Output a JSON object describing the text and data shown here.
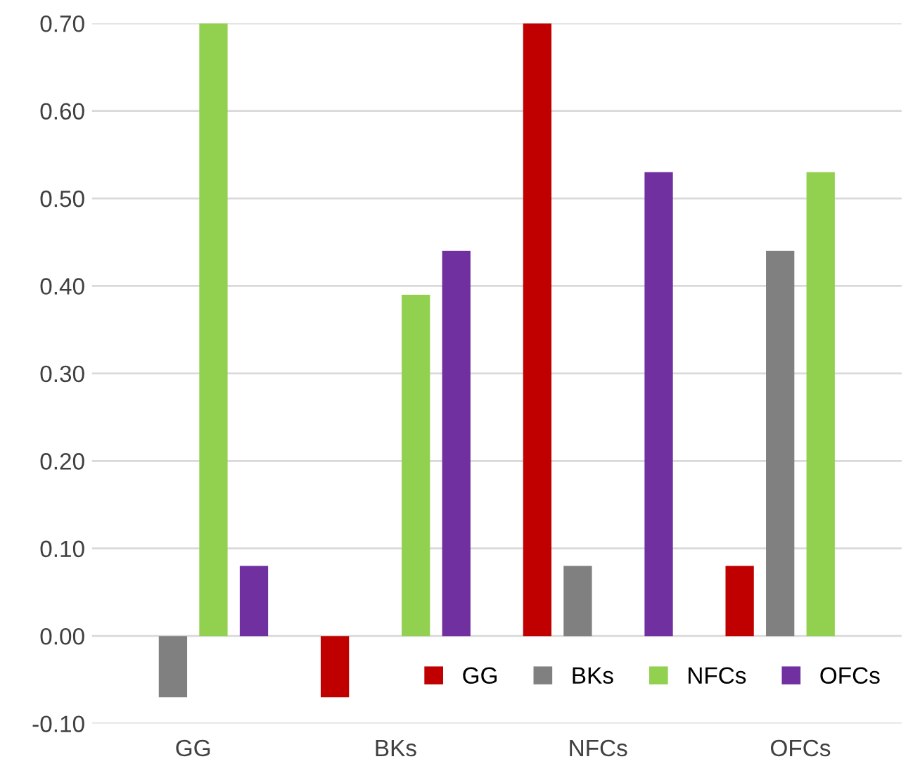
{
  "chart_data": {
    "type": "bar",
    "categories": [
      "GG",
      "BKs",
      "NFCs",
      "OFCs"
    ],
    "series": [
      {
        "name": "GG",
        "color": "#c00000",
        "values": [
          null,
          -0.07,
          0.7,
          0.08
        ]
      },
      {
        "name": "BKs",
        "color": "#808080",
        "values": [
          -0.07,
          null,
          0.08,
          0.44
        ]
      },
      {
        "name": "NFCs",
        "color": "#92d050",
        "values": [
          0.7,
          0.39,
          null,
          0.53
        ]
      },
      {
        "name": "OFCs",
        "color": "#7030a0",
        "values": [
          0.08,
          0.44,
          0.53,
          null
        ]
      }
    ],
    "ylim": [
      -0.1,
      0.7
    ],
    "yticks": [
      {
        "value": -0.1,
        "label": "-0.10"
      },
      {
        "value": 0,
        "label": "0.00"
      },
      {
        "value": 0.1,
        "label": "0.10"
      },
      {
        "value": 0.2,
        "label": "0.20"
      },
      {
        "value": 0.3,
        "label": "0.30"
      },
      {
        "value": 0.4,
        "label": "0.40"
      },
      {
        "value": 0.5,
        "label": "0.50"
      },
      {
        "value": 0.6,
        "label": "0.60"
      },
      {
        "value": 0.7,
        "label": "0.70"
      }
    ],
    "grid": "y",
    "legend": "bottom right"
  }
}
